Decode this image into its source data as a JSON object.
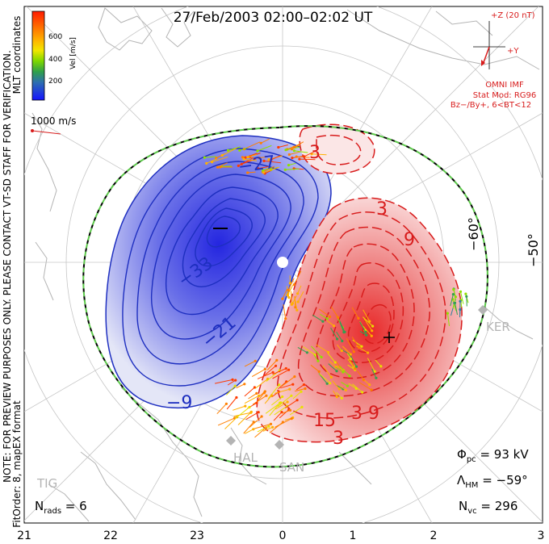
{
  "title": "27/Feb/2003 02:00–02:02 UT",
  "side_notes": {
    "note": "NOTE: FOR PREVIEW PURPOSES ONLY. PLEASE CONTACT VT-SD STAFF FOR VERIFICATION.",
    "fit": "FitOrder: 8, mapEX format",
    "coords": "MLT coordinates"
  },
  "colorbar": {
    "label": "Vel [m/s]",
    "ticks": [
      "600",
      "400",
      "200"
    ],
    "colors": [
      "#ff2a00",
      "#ff7f00",
      "#ffb400",
      "#ffee00",
      "#8ee000",
      "#33a833",
      "#2e8b9a",
      "#2e5fc8",
      "#1a1aff"
    ]
  },
  "scale_vector": {
    "label": "1000 m/s"
  },
  "imf": {
    "z_label": "+Z (20 nT)",
    "y_label": "+Y",
    "source": "OMNI IMF",
    "model": "Stat Mod: RG96",
    "condition": "Bz−/By+, 6<BT<12"
  },
  "contour_labels": [
    "−27",
    "−33",
    "−21",
    "−9",
    "3",
    "3",
    "9",
    "15",
    "3",
    "3",
    "9"
  ],
  "latitude_labels": [
    "−60°",
    "−50°"
  ],
  "stations": [
    "KER",
    "HAL",
    "SAN",
    "TIG"
  ],
  "stats": {
    "phi_pc_sym": "Φ",
    "phi_pc_sub": "pc",
    "phi_pc_value": " = 93 kV",
    "lambda_sym": "Λ",
    "lambda_sub": "HM",
    "lambda_value": " = −59°",
    "nvc_sym": "N",
    "nvc_sub": "vc",
    "nvc_value": " = 296",
    "nrads_sym": "N",
    "nrads_sub": "rads",
    "nrads_value": " = 6"
  },
  "mlt_axis": [
    "21",
    "22",
    "23",
    "0",
    "1",
    "2",
    "3"
  ],
  "colors": {
    "negative_cell": "#3c46d8",
    "positive_cell": "#e83838",
    "boundary": "#40b040",
    "coast": "#b0b0b0",
    "grid": "#c8c8c8"
  }
}
